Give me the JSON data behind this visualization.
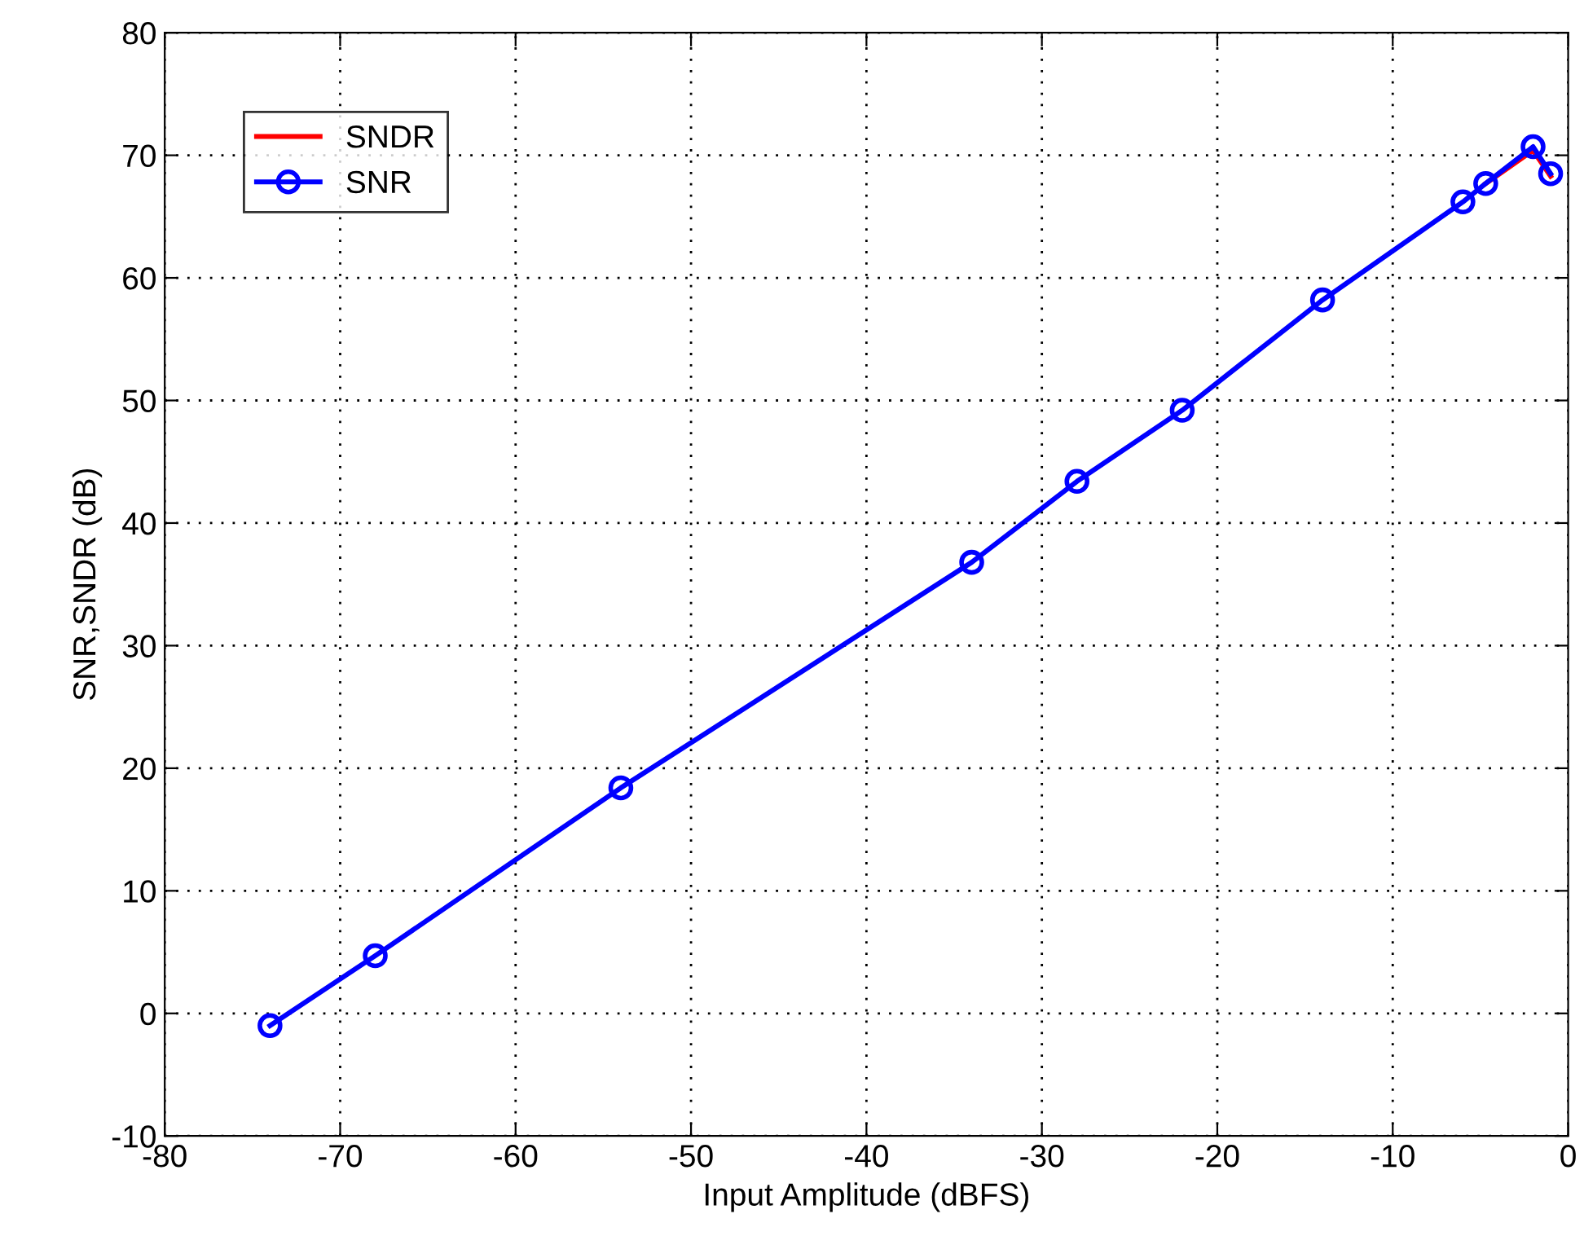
{
  "chart_data": {
    "type": "line",
    "xlabel": "Input Amplitude (dBFS)",
    "ylabel": "SNR,SNDR (dB)",
    "xlim": [
      -80,
      0
    ],
    "xticks": [
      -80,
      -70,
      -60,
      -50,
      -40,
      -30,
      -20,
      -10,
      0
    ],
    "ylim": [
      -10,
      80
    ],
    "yticks": [
      -10,
      0,
      10,
      20,
      30,
      40,
      50,
      60,
      70,
      80
    ],
    "grid": true,
    "legend": "top left",
    "x": [
      -74,
      -68,
      -54,
      -34,
      -28,
      -22,
      -14,
      -6,
      -4.7,
      -2,
      -1
    ],
    "series": [
      {
        "name": "SNDR",
        "color": "#ff0000",
        "marker": "none",
        "values": [
          null,
          null,
          null,
          null,
          null,
          null,
          null,
          null,
          67.7,
          70.4,
          68.3
        ]
      },
      {
        "name": "SNR",
        "color": "#0000ff",
        "marker": "circle",
        "values": [
          -1.0,
          4.7,
          18.4,
          36.8,
          43.4,
          49.2,
          58.2,
          66.2,
          67.7,
          70.7,
          68.5
        ]
      }
    ]
  }
}
